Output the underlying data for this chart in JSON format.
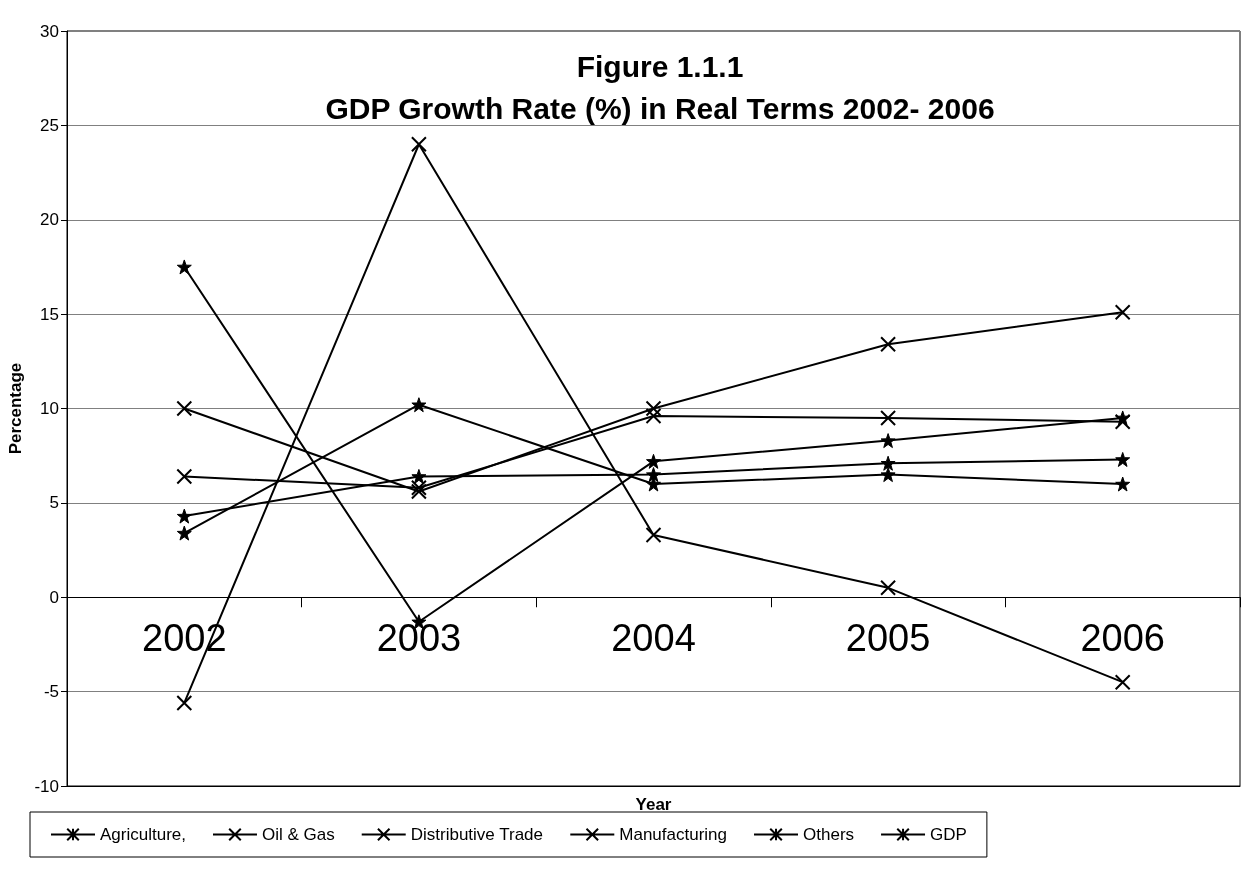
{
  "chart_data": {
    "type": "line",
    "title": "Figure 1.1.1\nGDP Growth Rate (%) in Real Terms 2002- 2006",
    "xlabel": "Year",
    "ylabel": "Percentage",
    "categories": [
      "2002",
      "2003",
      "2004",
      "2005",
      "2006"
    ],
    "series": [
      {
        "name": "Agriculture,",
        "color": "#000000",
        "marker": "star",
        "values": [
          17.5,
          -1.3,
          7.2,
          8.3,
          9.5
        ]
      },
      {
        "name": "Oil & Gas",
        "color": "#000000",
        "marker": "cross",
        "values": [
          -5.6,
          24,
          3.3,
          0.5,
          -4.5
        ]
      },
      {
        "name": "Distributive Trade",
        "color": "#000000",
        "marker": "cross",
        "values": [
          10,
          5.6,
          10,
          13.4,
          15.1
        ]
      },
      {
        "name": "Manufacturing",
        "color": "#000000",
        "marker": "cross",
        "values": [
          6.4,
          5.8,
          9.6,
          9.5,
          9.3
        ]
      },
      {
        "name": "Others",
        "color": "#000000",
        "marker": "star",
        "values": [
          3.4,
          10.2,
          6,
          6.5,
          6
        ]
      },
      {
        "name": "GDP",
        "color": "#000000",
        "marker": "star",
        "values": [
          4.3,
          6.4,
          6.5,
          7.1,
          7.3
        ]
      }
    ],
    "ylim": [
      -10,
      30
    ],
    "yticks": [
      -10,
      -5,
      0,
      5,
      10,
      15,
      20,
      25,
      30
    ],
    "grid": "y",
    "legend": "bottom",
    "line_style": "solid"
  }
}
